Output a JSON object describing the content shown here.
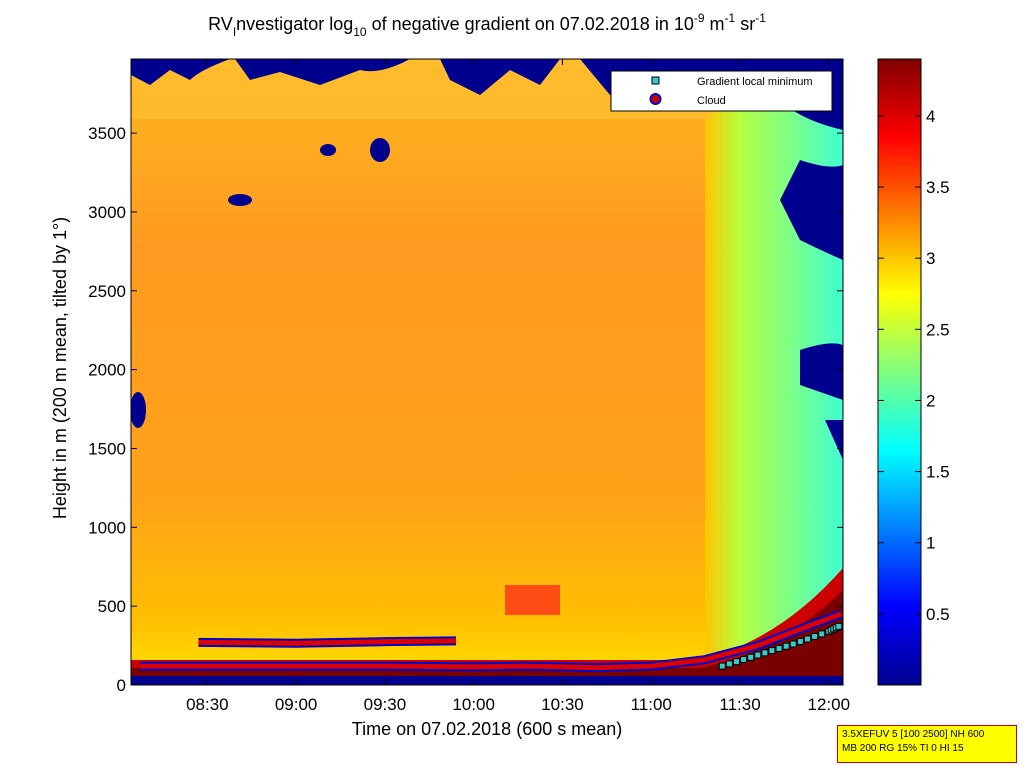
{
  "chart_data": {
    "type": "heatmap",
    "title": {
      "prefix": "RV",
      "prefix_sub": "I",
      "part1": "nvestigator log",
      "sub10": "10",
      "part2": " of negative gradient on 07.02.2018 in 10",
      "exp1": "-9",
      "part3": " m",
      "exp2": "-1",
      "part4": " sr",
      "exp3": "-1"
    },
    "xlabel": "Time on 07.02.2018 (600 s mean)",
    "ylabel": "Height in m (200 m mean, tilted by 1°)",
    "x_ticks": [
      "08:30",
      "09:00",
      "09:30",
      "10:00",
      "10:30",
      "11:00",
      "11:30",
      "12:00"
    ],
    "x_tick_hours": [
      8.5,
      9.0,
      9.5,
      10.0,
      10.5,
      11.0,
      11.5,
      12.0
    ],
    "xlim_hours": [
      8.07,
      12.08
    ],
    "y_ticks": [
      0,
      500,
      1000,
      1500,
      2000,
      2500,
      3000,
      3500
    ],
    "ylim": [
      0,
      3970
    ],
    "colorbar": {
      "ticks": [
        0.5,
        1,
        1.5,
        2,
        2.5,
        3,
        3.5,
        4
      ],
      "range": [
        0,
        4.4
      ],
      "colormap": "jet"
    },
    "legend": {
      "placement": "top-right",
      "entries": [
        {
          "label": "Gradient local minimum",
          "marker": "square",
          "color": "#33cccc"
        },
        {
          "label": "Cloud",
          "marker": "circle",
          "color": "#cc0000"
        }
      ]
    },
    "cloud_layers": [
      {
        "name": "low",
        "x_hours": [
          8.12,
          8.5,
          9.0,
          9.5,
          10.0,
          10.3,
          10.7,
          11.0,
          11.3,
          11.6,
          11.9,
          12.07
        ],
        "y_m": [
          120,
          120,
          120,
          120,
          115,
          120,
          110,
          120,
          160,
          250,
          380,
          450
        ]
      },
      {
        "name": "mid",
        "x_hours": [
          8.45,
          9.0,
          9.5,
          9.9
        ],
        "y_m": [
          270,
          265,
          275,
          280
        ]
      }
    ],
    "gradient_minimum": {
      "x_hours": [
        11.4,
        11.6,
        11.8,
        12.0,
        12.07
      ],
      "y_m": [
        120,
        190,
        260,
        340,
        380
      ]
    }
  },
  "info_box": {
    "line1": "3.5XEFUV 5 [100 2500] NH 600",
    "line2": "MB 200 RG 15% TI 0 HI 15"
  }
}
